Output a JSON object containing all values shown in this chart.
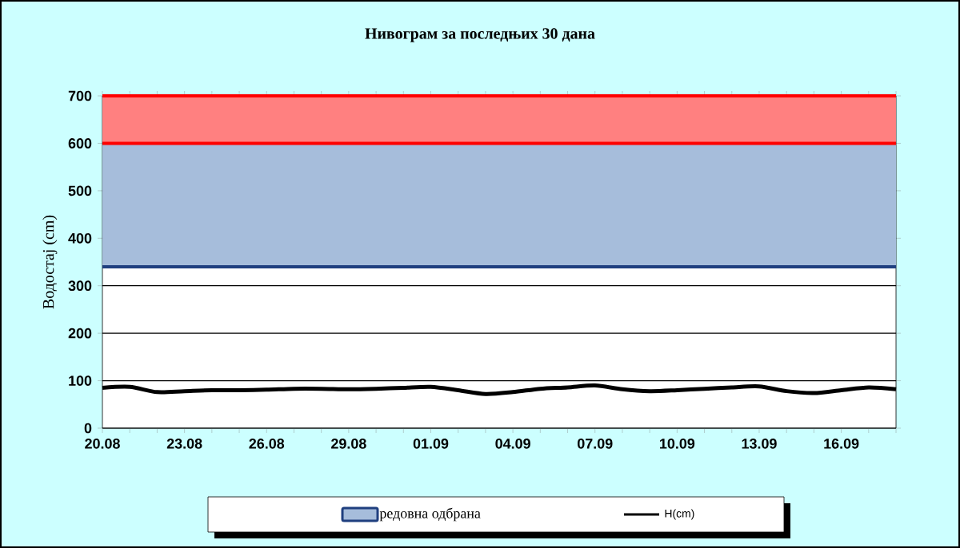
{
  "chart_data": {
    "type": "line",
    "title": "Нивограм за последњих 30 дана",
    "ylabel": "Водостај (cm)",
    "categories": [
      "20.08",
      null,
      null,
      "23.08",
      null,
      null,
      "26.08",
      null,
      null,
      "29.08",
      null,
      null,
      "01.09",
      null,
      null,
      "04.09",
      null,
      null,
      "07.09",
      null,
      null,
      "10.09",
      null,
      null,
      "13.09",
      null,
      null,
      "16.09",
      null,
      null
    ],
    "series": [
      {
        "name": "H(cm)",
        "color": "#000000",
        "values": [
          85,
          87,
          76,
          78,
          80,
          80,
          81,
          83,
          83,
          82,
          83,
          85,
          87,
          80,
          72,
          76,
          83,
          86,
          90,
          82,
          78,
          80,
          83,
          86,
          88,
          78,
          74,
          80,
          86,
          82
        ]
      }
    ],
    "ylim": [
      0,
      700
    ],
    "yticks": [
      0,
      100,
      200,
      300,
      400,
      500,
      600,
      700
    ],
    "grid": "y",
    "legend": "bottom",
    "marker": "none",
    "line_style": "solid",
    "bands": [
      {
        "axis": "y",
        "from": 340,
        "to": 600,
        "label": "редовна одбрана",
        "color": "#a6bddb"
      },
      {
        "axis": "y",
        "from": 600,
        "to": 700,
        "color": "#ff8080"
      }
    ],
    "ref_lines": [
      {
        "axis": "y",
        "value": 340,
        "color": "#1f3f7f"
      },
      {
        "axis": "y",
        "value": 600,
        "color": "#ff0000"
      },
      {
        "axis": "y",
        "value": 700,
        "color": "#ff0000"
      }
    ]
  }
}
